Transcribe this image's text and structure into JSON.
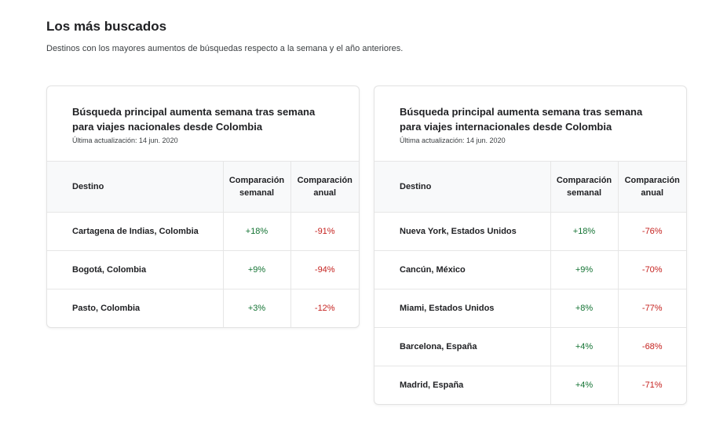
{
  "page": {
    "title": "Los más buscados",
    "subtitle": "Destinos con los mayores aumentos de búsquedas respecto a la semana y el año anteriores."
  },
  "colors": {
    "positive": "#137333",
    "negative": "#c5221f"
  },
  "cards": [
    {
      "title": "Búsqueda principal aumenta semana tras semana para viajes nacionales desde Colombia",
      "updated": "Última actualización: 14 jun. 2020",
      "columns": [
        "Destino",
        "Comparación semanal",
        "Comparación anual"
      ],
      "rows": [
        {
          "destino": "Cartagena de Indias, Colombia",
          "semanal": "+18%",
          "anual": "-91%"
        },
        {
          "destino": "Bogotá, Colombia",
          "semanal": "+9%",
          "anual": "-94%"
        },
        {
          "destino": "Pasto, Colombia",
          "semanal": "+3%",
          "anual": "-12%"
        }
      ]
    },
    {
      "title": "Búsqueda principal aumenta semana tras semana para viajes internacionales desde Colombia",
      "updated": "Última actualización: 14 jun. 2020",
      "columns": [
        "Destino",
        "Comparación semanal",
        "Comparación anual"
      ],
      "rows": [
        {
          "destino": "Nueva York, Estados Unidos",
          "semanal": "+18%",
          "anual": "-76%"
        },
        {
          "destino": "Cancún, México",
          "semanal": "+9%",
          "anual": "-70%"
        },
        {
          "destino": "Miami, Estados Unidos",
          "semanal": "+8%",
          "anual": "-77%"
        },
        {
          "destino": "Barcelona, España",
          "semanal": "+4%",
          "anual": "-68%"
        },
        {
          "destino": "Madrid, España",
          "semanal": "+4%",
          "anual": "-71%"
        }
      ]
    }
  ]
}
